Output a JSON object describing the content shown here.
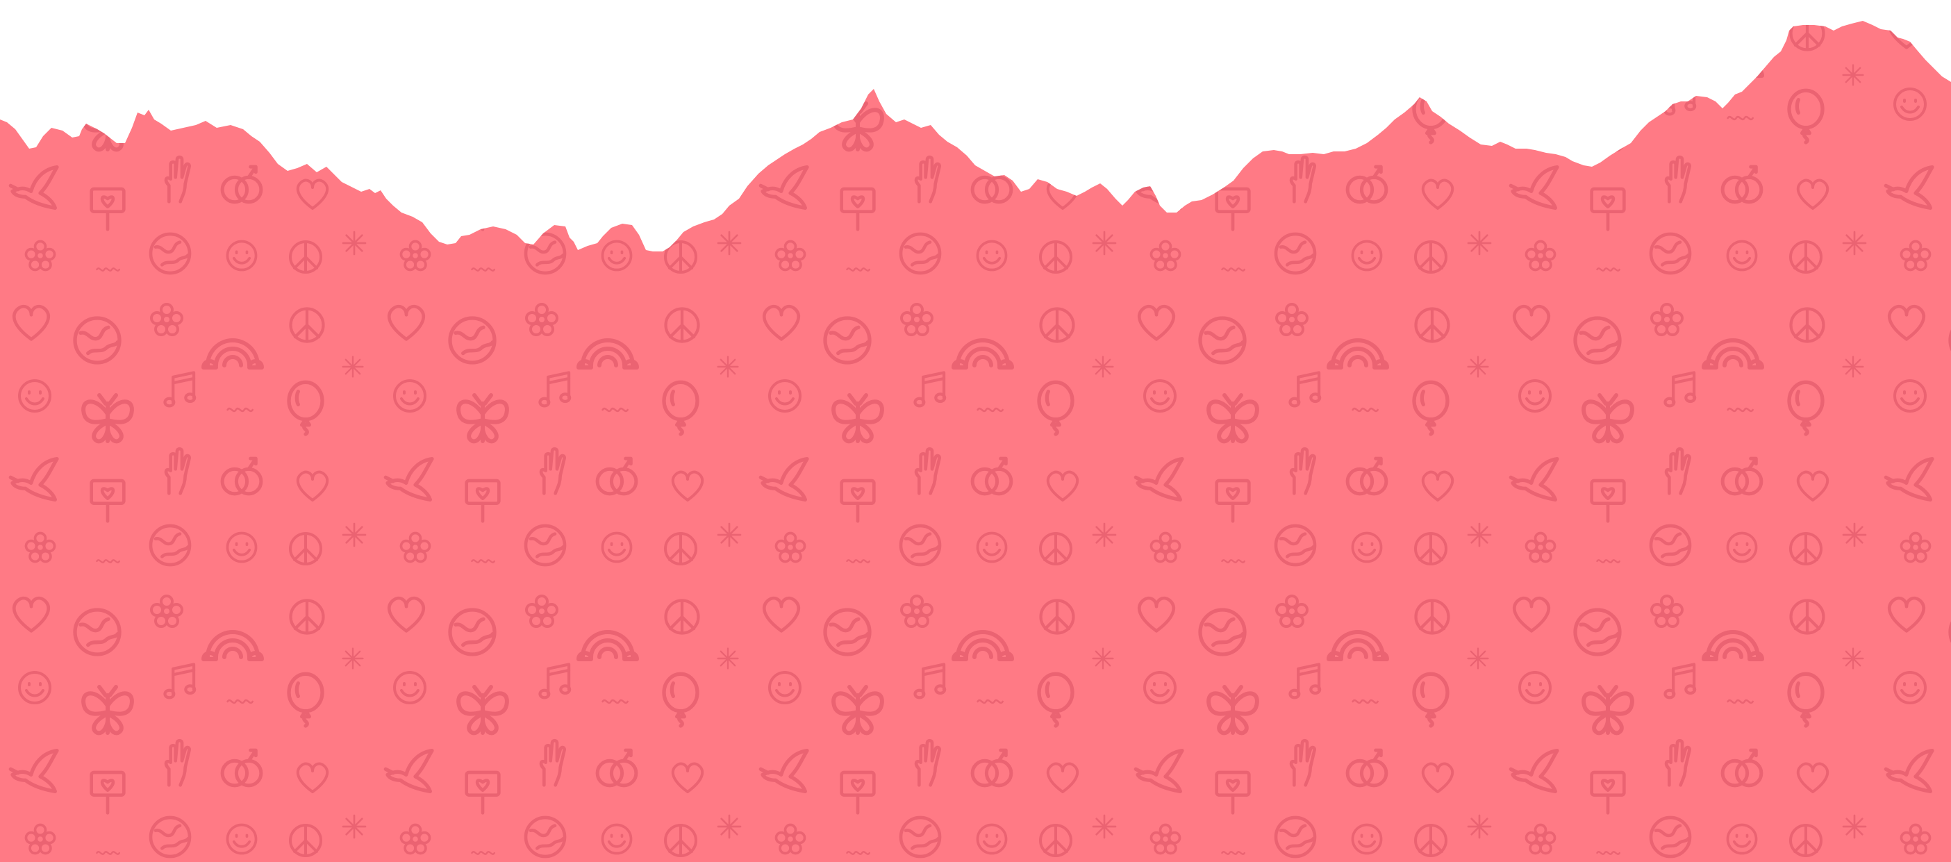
{
  "colors": {
    "background": "#ffffff",
    "paper": "#ff7a85",
    "doodle": "#e85f6e"
  },
  "doodle_icons": [
    "heart-icon",
    "globe-icon",
    "flower-icon",
    "rainbow-icon",
    "peace-icon",
    "smiley-icon",
    "star-icon",
    "butterfly-icon",
    "music-note-icon",
    "balloon-icon",
    "dove-icon",
    "sign-icon",
    "hand-icon",
    "rings-icon",
    "squiggle-icon"
  ]
}
